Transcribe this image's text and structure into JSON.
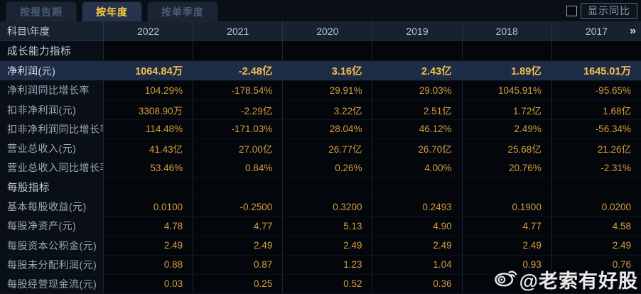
{
  "tabs": [
    {
      "label": "按报告期",
      "active": false
    },
    {
      "label": "按年度",
      "active": true
    },
    {
      "label": "按单季度",
      "active": false
    }
  ],
  "show_yoy": {
    "label": "显示同比",
    "checked": false
  },
  "table": {
    "corner_label": "科目\\年度",
    "years": [
      "2022",
      "2021",
      "2020",
      "2019",
      "2018",
      "2017"
    ],
    "more_icon": "»",
    "rows": [
      {
        "type": "section",
        "label": "成长能力指标",
        "values": [
          "",
          "",
          "",
          "",
          "",
          ""
        ]
      },
      {
        "type": "data",
        "highlight": true,
        "label": "净利润(元)",
        "values": [
          "1064.84万",
          "-2.48亿",
          "3.16亿",
          "2.43亿",
          "1.89亿",
          "1645.01万"
        ]
      },
      {
        "type": "data",
        "label": "净利润同比增长率",
        "values": [
          "104.29%",
          "-178.54%",
          "29.91%",
          "29.03%",
          "1045.91%",
          "-95.65%"
        ]
      },
      {
        "type": "data",
        "label": "扣非净利润(元)",
        "values": [
          "3308.90万",
          "-2.29亿",
          "3.22亿",
          "2.51亿",
          "1.72亿",
          "1.68亿"
        ]
      },
      {
        "type": "data",
        "label": "扣非净利润同比增长率",
        "values": [
          "114.48%",
          "-171.03%",
          "28.04%",
          "46.12%",
          "2.49%",
          "-56.34%"
        ]
      },
      {
        "type": "data",
        "label": "营业总收入(元)",
        "values": [
          "41.43亿",
          "27.00亿",
          "26.77亿",
          "26.70亿",
          "25.68亿",
          "21.26亿"
        ]
      },
      {
        "type": "data",
        "label": "营业总收入同比增长率",
        "values": [
          "53.46%",
          "0.84%",
          "0.26%",
          "4.00%",
          "20.76%",
          "-2.31%"
        ]
      },
      {
        "type": "section",
        "label": "每股指标",
        "values": [
          "",
          "",
          "",
          "",
          "",
          ""
        ]
      },
      {
        "type": "data",
        "label": "基本每股收益(元)",
        "values": [
          "0.0100",
          "-0.2500",
          "0.3200",
          "0.2493",
          "0.1900",
          "0.0200"
        ]
      },
      {
        "type": "data",
        "label": "每股净资产(元)",
        "values": [
          "4.78",
          "4.77",
          "5.13",
          "4.90",
          "4.77",
          "4.58"
        ]
      },
      {
        "type": "data",
        "label": "每股资本公积金(元)",
        "values": [
          "2.49",
          "2.49",
          "2.49",
          "2.49",
          "2.49",
          "2.49"
        ]
      },
      {
        "type": "data",
        "label": "每股未分配利润(元)",
        "values": [
          "0.88",
          "0.87",
          "1.23",
          "1.04",
          "0.93",
          "0.76"
        ]
      },
      {
        "type": "data",
        "label": "每股经营现金流(元)",
        "values": [
          "0.03",
          "0.25",
          "0.52",
          "0.36",
          "",
          ""
        ]
      }
    ]
  },
  "watermark": {
    "text": "@老索有好股",
    "icon": "weibo-icon"
  },
  "colors": {
    "value_gold": "#d89d40",
    "highlight_value_gold": "#f2c04e",
    "active_tab_yellow": "#ffd23e",
    "highlight_row_bg": "#1f2c45",
    "header_row_bg": "#18212e",
    "page_bg": "#060a10"
  }
}
